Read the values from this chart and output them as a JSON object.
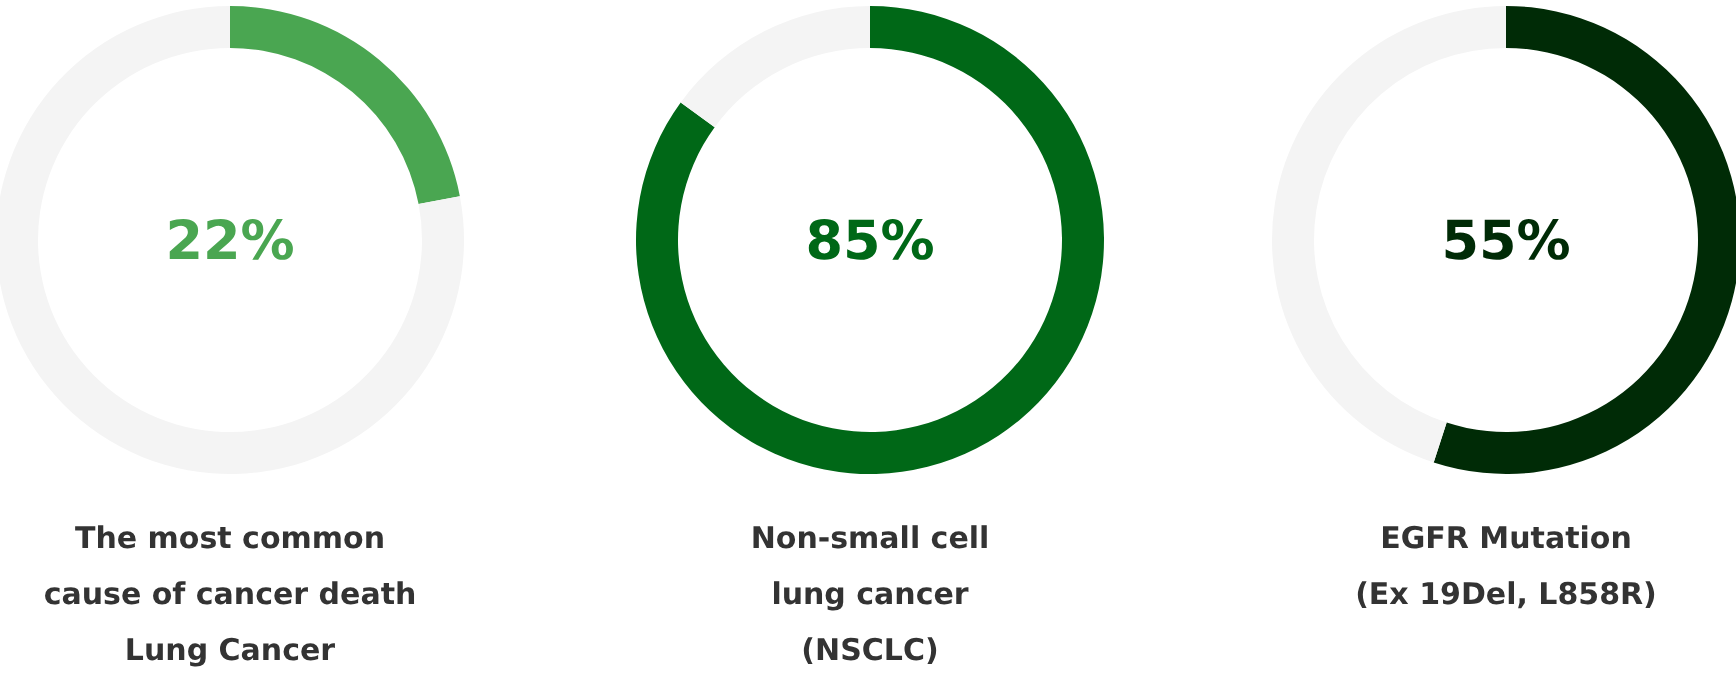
{
  "chart_data": [
    {
      "type": "donut",
      "title": "The most common\ncause of cancer death\nLung Cancer",
      "categories": [
        null,
        null
      ],
      "values": [
        22,
        78
      ],
      "colors": [
        "#4aa651",
        "#f4f4f4"
      ],
      "annotations": [
        "22%"
      ]
    },
    {
      "type": "donut",
      "title": "Non-small cell\nlung cancer\n(NSCLC)",
      "categories": [
        null,
        null
      ],
      "values": [
        85,
        15
      ],
      "colors": [
        "#006817",
        "#f4f4f4"
      ],
      "annotations": [
        "85%"
      ]
    },
    {
      "type": "donut",
      "title": "EGFR Mutation\n(Ex 19Del, L858R)",
      "categories": [
        null,
        null
      ],
      "values": [
        55,
        45
      ],
      "colors": [
        "#002b06",
        "#f4f4f4"
      ],
      "annotations": [
        "55%"
      ]
    }
  ]
}
